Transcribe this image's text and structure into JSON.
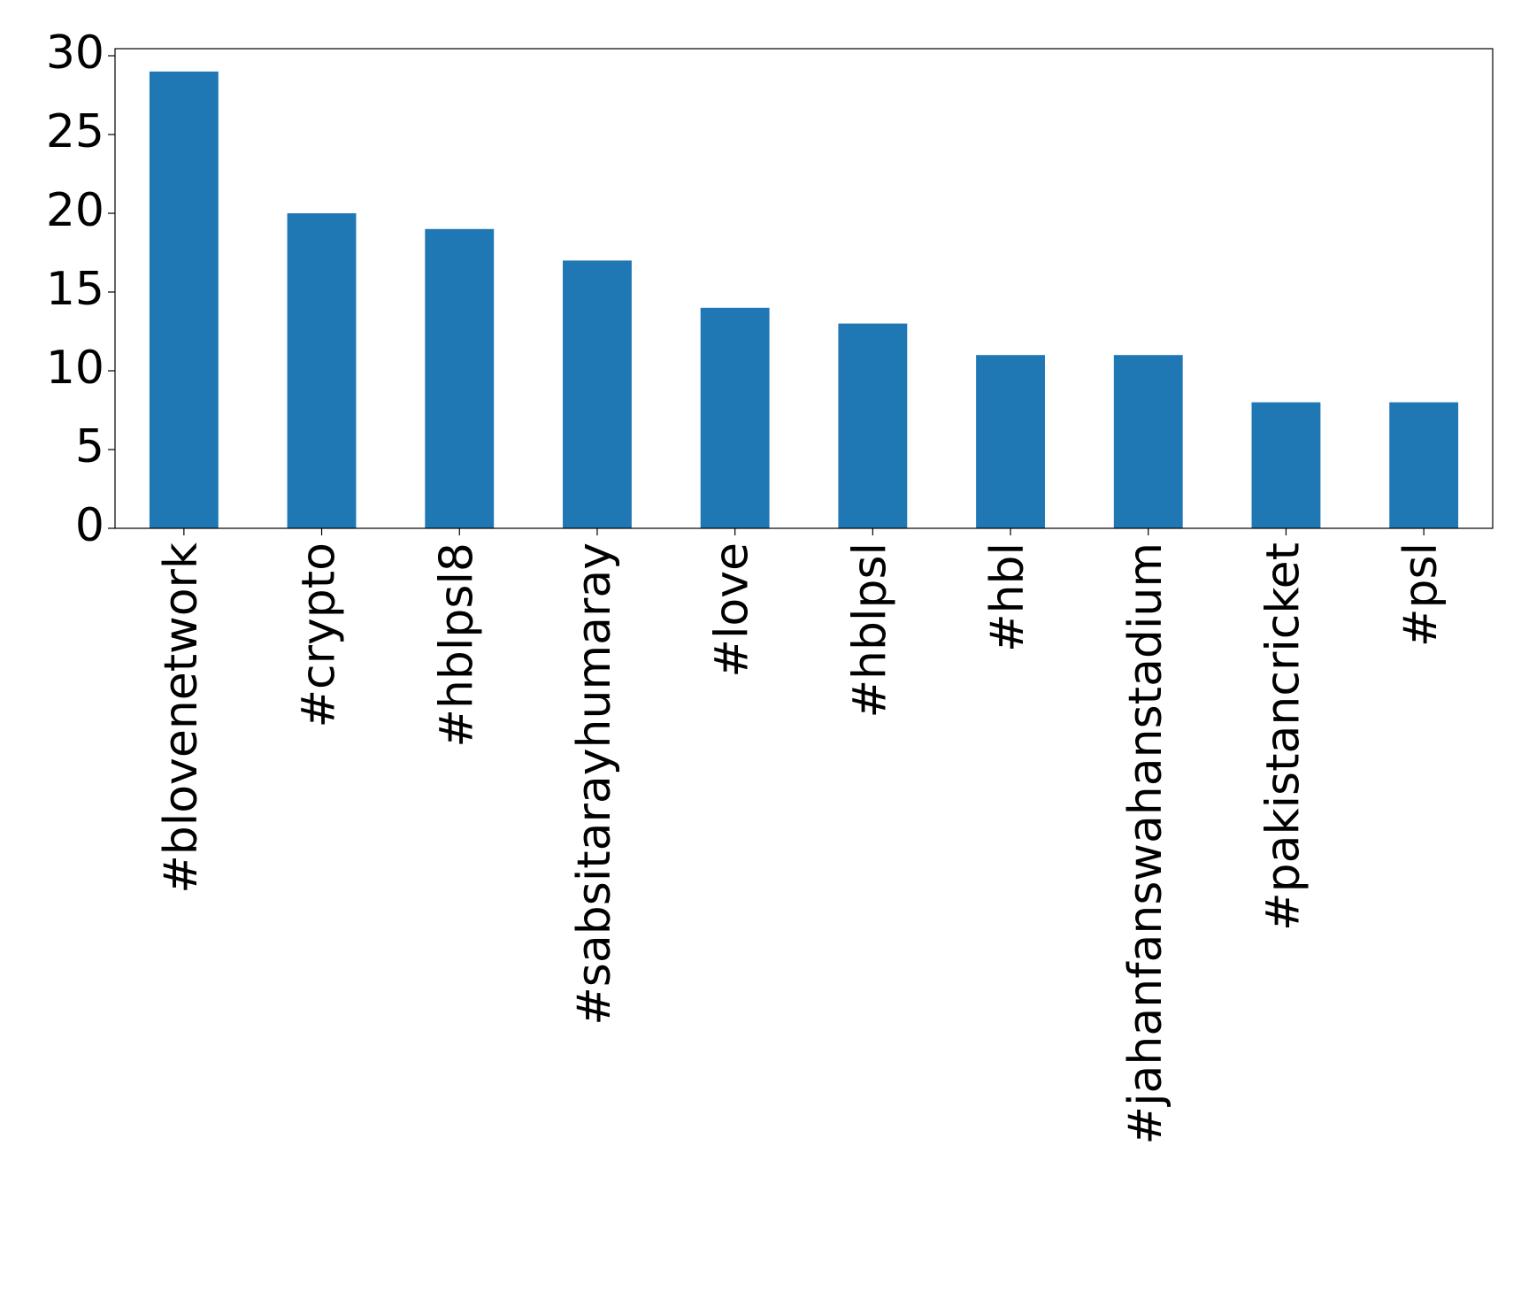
{
  "chart_data": {
    "type": "bar",
    "categories": [
      "#blovenetwork",
      "#crypto",
      "#hblpsl8",
      "#sabsitarayhumaray",
      "#love",
      "#hblpsl",
      "#hbl",
      "#jahanfanswahanstadium",
      "#pakistancricket",
      "#psl"
    ],
    "values": [
      29,
      20,
      19,
      17,
      14,
      13,
      11,
      11,
      8,
      8
    ],
    "color": "#1f77b4",
    "ylim": [
      0,
      30.45
    ],
    "yticks": [
      0,
      5,
      10,
      15,
      20,
      25,
      30
    ],
    "grid": false
  }
}
